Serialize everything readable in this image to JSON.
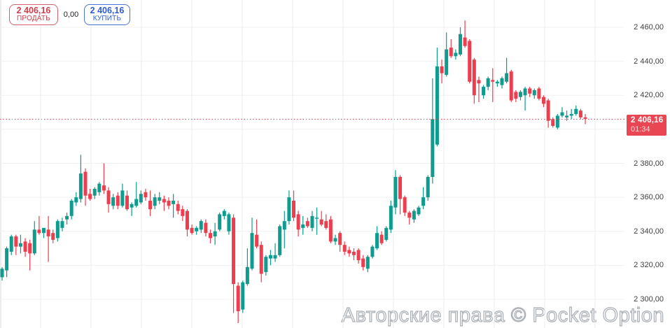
{
  "buttons": {
    "sell_price": "2 406,16",
    "sell_label": "ПРОДАТЬ",
    "spread": "0,00",
    "buy_price": "2 406,16",
    "buy_label": "КУПИТЬ"
  },
  "price_line": {
    "price": "2 406,16",
    "timer": "01:34",
    "value": 2406.16
  },
  "watermark": "Авторские права © Pocket Option",
  "colors": {
    "up": "#0f9b8d",
    "down": "#ec3e4e",
    "badge": "#e94653",
    "dotted_line": "#cf4b55",
    "grid_vertical": "#ececec",
    "grid_horizontal": "#f1f1f1",
    "axis_text": "#3f3f3f",
    "sell": "#ce3e4c",
    "buy": "#2e5bd7"
  },
  "chart_data": {
    "type": "candlestick",
    "title": "",
    "grid": true,
    "current_price": 2406.16,
    "y_axis": {
      "side": "right",
      "ylim": [
        2286,
        2464
      ],
      "gridline_prices": [
        2460,
        2440,
        2420,
        2400,
        2380,
        2360,
        2340,
        2320,
        2300
      ],
      "ticks": [
        {
          "price": 2460,
          "label": "2 460,00"
        },
        {
          "price": 2440,
          "label": "2 440,00"
        },
        {
          "price": 2420,
          "label": "2 420,00"
        },
        {
          "price": 2380,
          "label": "2 380,00"
        },
        {
          "price": 2360,
          "label": "2 360,00"
        },
        {
          "price": 2340,
          "label": "2 340,00"
        },
        {
          "price": 2320,
          "label": "2 320,00"
        },
        {
          "price": 2300,
          "label": "2 300,00"
        }
      ]
    },
    "candles_format": [
      "open",
      "high",
      "low",
      "close"
    ],
    "candles": [
      [
        2313,
        2319,
        2311,
        2318
      ],
      [
        2317,
        2331,
        2313,
        2330
      ],
      [
        2328,
        2338,
        2326,
        2337
      ],
      [
        2337,
        2338,
        2326,
        2331
      ],
      [
        2331,
        2338,
        2327,
        2333
      ],
      [
        2334,
        2336,
        2325,
        2328
      ],
      [
        2333,
        2335,
        2317,
        2327
      ],
      [
        2327,
        2346,
        2326,
        2341
      ],
      [
        2341,
        2349,
        2338,
        2339
      ],
      [
        2339,
        2342,
        2336,
        2342
      ],
      [
        2341,
        2349,
        2322,
        2337
      ],
      [
        2339,
        2341,
        2333,
        2335
      ],
      [
        2336,
        2347,
        2334,
        2346
      ],
      [
        2342,
        2348,
        2340,
        2346
      ],
      [
        2347,
        2351,
        2344,
        2349
      ],
      [
        2349,
        2359,
        2347,
        2358
      ],
      [
        2357,
        2363,
        2355,
        2360
      ],
      [
        2359,
        2385,
        2357,
        2374
      ],
      [
        2375,
        2377,
        2355,
        2361
      ],
      [
        2362,
        2365,
        2358,
        2359
      ],
      [
        2361,
        2366,
        2359,
        2365
      ],
      [
        2363,
        2369,
        2361,
        2368
      ],
      [
        2367,
        2380,
        2362,
        2364
      ],
      [
        2364,
        2366,
        2351,
        2356
      ],
      [
        2355,
        2362,
        2353,
        2360
      ],
      [
        2361,
        2363,
        2353,
        2355
      ],
      [
        2355,
        2368,
        2354,
        2364
      ],
      [
        2361,
        2364,
        2352,
        2353
      ],
      [
        2354,
        2357,
        2349,
        2356
      ],
      [
        2355,
        2369,
        2354,
        2359
      ],
      [
        2357,
        2364,
        2356,
        2362
      ],
      [
        2363,
        2365,
        2358,
        2360
      ],
      [
        2358,
        2364,
        2349,
        2353
      ],
      [
        2355,
        2362,
        2353,
        2360
      ],
      [
        2358,
        2363,
        2356,
        2360
      ],
      [
        2359,
        2361,
        2352,
        2357
      ],
      [
        2358,
        2360,
        2353,
        2355
      ],
      [
        2356,
        2362,
        2348,
        2358
      ],
      [
        2356,
        2358,
        2350,
        2352
      ],
      [
        2353,
        2355,
        2346,
        2349
      ],
      [
        2352,
        2353,
        2337,
        2341
      ],
      [
        2342,
        2344,
        2338,
        2339
      ],
      [
        2340,
        2343,
        2338,
        2342
      ],
      [
        2341,
        2347,
        2339,
        2346
      ],
      [
        2345,
        2347,
        2337,
        2339
      ],
      [
        2339,
        2341,
        2333,
        2336
      ],
      [
        2337,
        2345,
        2332,
        2340
      ],
      [
        2341,
        2351,
        2340,
        2350
      ],
      [
        2349,
        2353,
        2347,
        2352
      ],
      [
        2340,
        2351,
        2338,
        2350
      ],
      [
        2348,
        2350,
        2292,
        2309
      ],
      [
        2308,
        2310,
        2286,
        2293
      ],
      [
        2294,
        2311,
        2292,
        2310
      ],
      [
        2309,
        2330,
        2308,
        2319
      ],
      [
        2318,
        2348,
        2317,
        2339
      ],
      [
        2338,
        2347,
        2330,
        2331
      ],
      [
        2332,
        2334,
        2310,
        2315
      ],
      [
        2316,
        2326,
        2314,
        2325
      ],
      [
        2324,
        2329,
        2320,
        2326
      ],
      [
        2324,
        2333,
        2322,
        2326
      ],
      [
        2326,
        2344,
        2325,
        2343
      ],
      [
        2341,
        2352,
        2330,
        2346
      ],
      [
        2346,
        2364,
        2344,
        2360
      ],
      [
        2358,
        2364,
        2346,
        2348
      ],
      [
        2350,
        2352,
        2337,
        2341
      ],
      [
        2342,
        2349,
        2338,
        2344
      ],
      [
        2346,
        2348,
        2342,
        2343
      ],
      [
        2342,
        2352,
        2340,
        2349
      ],
      [
        2347.5,
        2354,
        2338,
        2348
      ],
      [
        2347,
        2352,
        2343,
        2344
      ],
      [
        2346,
        2350,
        2341,
        2342
      ],
      [
        2347,
        2349,
        2333,
        2334
      ],
      [
        2334,
        2338,
        2332,
        2336
      ],
      [
        2339,
        2340,
        2328,
        2332
      ],
      [
        2332,
        2334,
        2326,
        2328
      ],
      [
        2329,
        2331,
        2325,
        2327
      ],
      [
        2328,
        2330,
        2323,
        2326
      ],
      [
        2329,
        2330,
        2321,
        2323
      ],
      [
        2324,
        2326,
        2317,
        2319
      ],
      [
        2318,
        2326,
        2316,
        2325
      ],
      [
        2325,
        2332,
        2324,
        2331
      ],
      [
        2330,
        2343,
        2329,
        2339
      ],
      [
        2338,
        2340,
        2332,
        2333
      ],
      [
        2335,
        2343,
        2334,
        2342
      ],
      [
        2341,
        2358,
        2339,
        2355
      ],
      [
        2354,
        2376,
        2350,
        2372
      ],
      [
        2372,
        2373,
        2350,
        2359
      ],
      [
        2360,
        2361,
        2349,
        2351
      ],
      [
        2351,
        2352,
        2344,
        2348
      ],
      [
        2347,
        2353,
        2345,
        2352
      ],
      [
        2350,
        2355,
        2349,
        2354
      ],
      [
        2355,
        2366,
        2353,
        2360
      ],
      [
        2360,
        2373,
        2358,
        2372
      ],
      [
        2372,
        2430,
        2368,
        2406
      ],
      [
        2391,
        2448,
        2390,
        2437
      ],
      [
        2437,
        2441,
        2427,
        2433
      ],
      [
        2432,
        2457,
        2431,
        2447
      ],
      [
        2448,
        2453,
        2442,
        2443
      ],
      [
        2443,
        2447,
        2441,
        2445
      ],
      [
        2444,
        2460,
        2443,
        2456
      ],
      [
        2454,
        2464,
        2448,
        2449
      ],
      [
        2452,
        2453,
        2427,
        2428
      ],
      [
        2441,
        2442,
        2415,
        2420
      ],
      [
        2429,
        2431,
        2416,
        2427
      ],
      [
        2420,
        2426,
        2418,
        2425
      ],
      [
        2425,
        2431,
        2423,
        2430
      ],
      [
        2429,
        2436,
        2416,
        2428
      ],
      [
        2427,
        2429,
        2425,
        2428
      ],
      [
        2426,
        2431,
        2424,
        2430
      ],
      [
        2428,
        2442,
        2427,
        2433
      ],
      [
        2434,
        2435,
        2416,
        2417
      ],
      [
        2422,
        2423,
        2416,
        2418
      ],
      [
        2419,
        2423,
        2417,
        2422
      ],
      [
        2420,
        2425,
        2411,
        2424
      ],
      [
        2424,
        2425,
        2419,
        2421
      ],
      [
        2420,
        2424,
        2418,
        2423
      ],
      [
        2424,
        2425,
        2417,
        2418
      ],
      [
        2419,
        2420,
        2413,
        2415
      ],
      [
        2417,
        2418,
        2401,
        2405
      ],
      [
        2406,
        2407,
        2401,
        2402
      ],
      [
        2401,
        2409,
        2400,
        2408
      ],
      [
        2408,
        2413,
        2407,
        2410
      ],
      [
        2407,
        2411,
        2405,
        2408
      ],
      [
        2408,
        2412,
        2406,
        2409
      ],
      [
        2409,
        2414,
        2408,
        2412
      ],
      [
        2411,
        2412,
        2406,
        2407
      ],
      [
        2407,
        2409,
        2403,
        2406.16
      ]
    ]
  }
}
